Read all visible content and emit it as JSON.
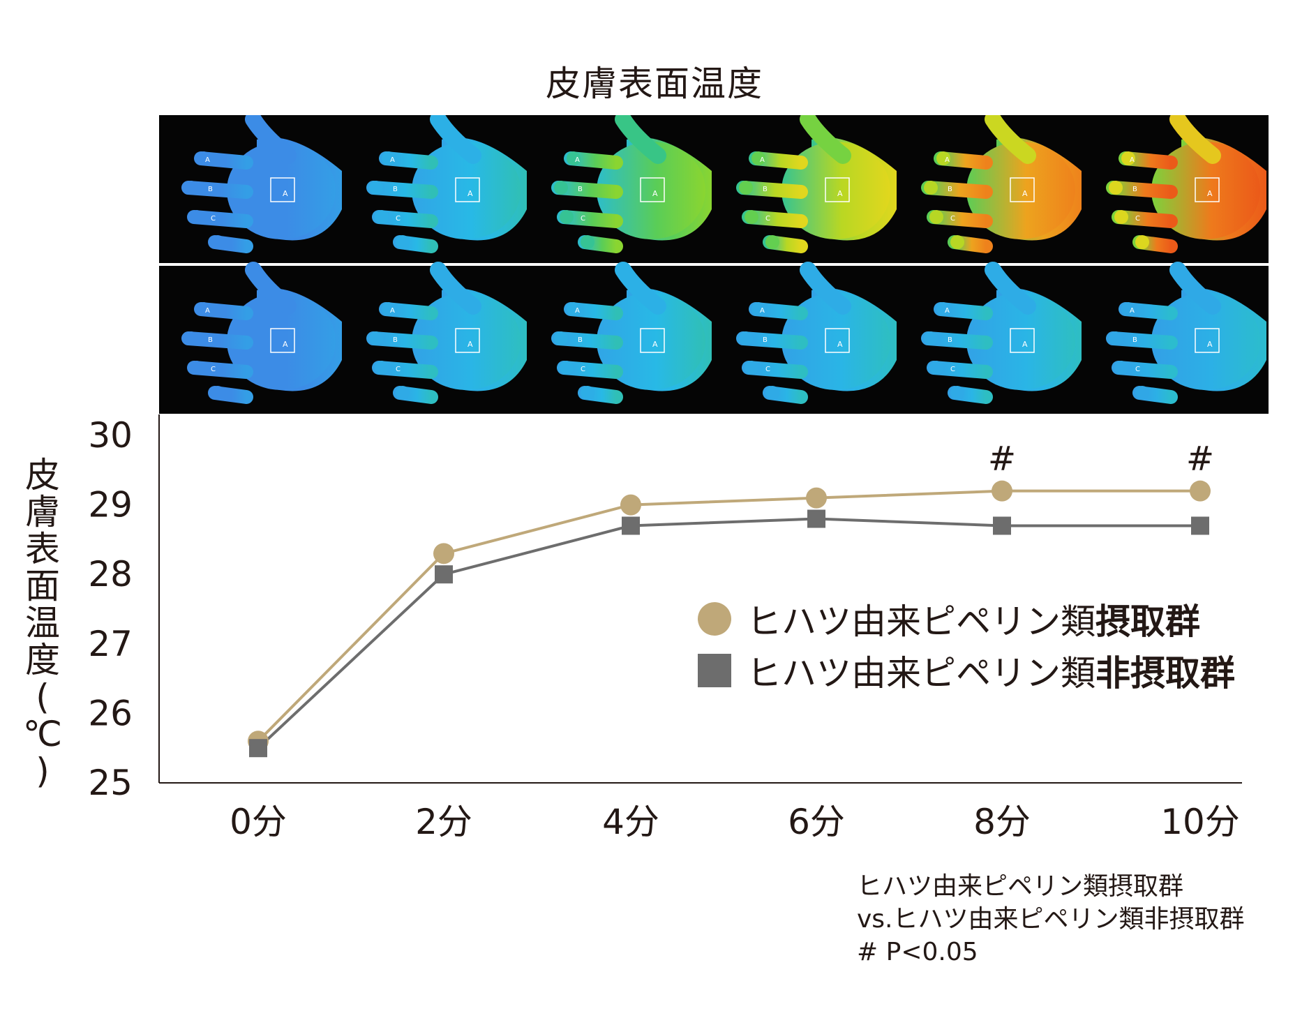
{
  "chart_data": {
    "type": "line",
    "title": "皮膚表面温度",
    "ylabel": "皮膚表面温度(℃)",
    "categories": [
      "0分",
      "2分",
      "4分",
      "6分",
      "8分",
      "10分"
    ],
    "ylim": [
      25,
      30
    ],
    "yticks": [
      25,
      26,
      27,
      28,
      29,
      30
    ],
    "grid": false,
    "legend_position": "right",
    "series": [
      {
        "name_prefix": "ヒハツ由来ピペリン類",
        "name_suffix": "摂取群",
        "marker": "circle",
        "color": "#BFA879",
        "values": [
          25.6,
          28.3,
          29.0,
          29.1,
          29.2,
          29.2
        ]
      },
      {
        "name_prefix": "ヒハツ由来ピペリン類",
        "name_suffix": "非摂取群",
        "marker": "square",
        "color": "#6D6D6D",
        "values": [
          25.5,
          28.0,
          28.7,
          28.8,
          28.7,
          28.7
        ]
      }
    ],
    "significance_marks": [
      {
        "category": "8分",
        "label": "#"
      },
      {
        "category": "10分",
        "label": "#"
      }
    ],
    "footnote": [
      "ヒハツ由来ピペリン類摂取群",
      "vs.ヒハツ由来ピペリン類非摂取群",
      "# P<0.05"
    ]
  },
  "thermal_rows": [
    {
      "levels": [
        0.0,
        0.2,
        0.45,
        0.62,
        0.82,
        0.92
      ]
    },
    {
      "levels": [
        0.0,
        0.18,
        0.2,
        0.18,
        0.18,
        0.16
      ]
    }
  ],
  "roi_labels": {
    "square": "A",
    "points": [
      "A",
      "B",
      "C"
    ]
  },
  "colors": {
    "axis": "#231815",
    "thermal_background": "#050505"
  }
}
